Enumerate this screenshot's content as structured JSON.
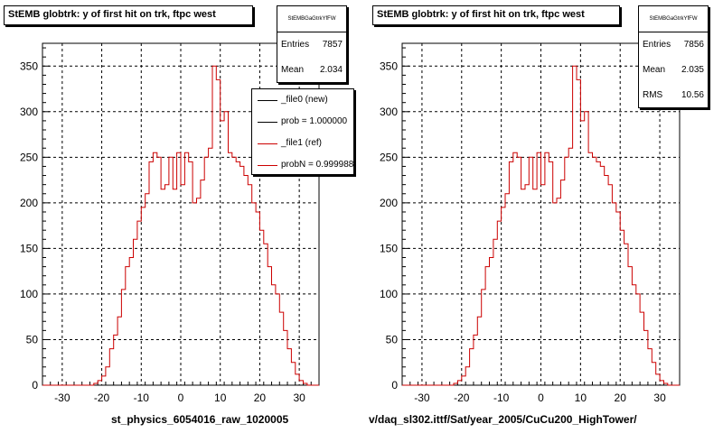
{
  "chart_data": [
    {
      "type": "histogram",
      "title": "StEMB globtrk: y of first hit on trk, ftpc west",
      "xlabel": "st_physics_6054016_raw_1020005",
      "xlim": [
        -35,
        35
      ],
      "ylim": [
        0,
        375
      ],
      "xticks": [
        -30,
        -20,
        -10,
        0,
        10,
        20,
        30
      ],
      "yticks": [
        0,
        50,
        100,
        150,
        200,
        250,
        300,
        350
      ],
      "grid": true,
      "stats": {
        "header": "StEMBGaGtrkYfFW",
        "entries_label": "Entries",
        "entries": "7857",
        "mean_label": "Mean",
        "mean": "2.034"
      },
      "legend": {
        "placement": "top-right",
        "entries": [
          {
            "label": "_file0 (new)",
            "color": "#000000"
          },
          {
            "label": "prob = 1.000000",
            "color": "#000000"
          },
          {
            "label": "_file1 (ref)",
            "color": "#cc0000"
          },
          {
            "label": "probN = 0.999988",
            "color": "#cc0000"
          }
        ]
      },
      "bin_edges_start": -35,
      "bin_width": 1,
      "series": [
        {
          "color": "#cc0000",
          "values": [
            0,
            0,
            0,
            0,
            0,
            0,
            0,
            0,
            0,
            0,
            0,
            0,
            0,
            2,
            5,
            10,
            20,
            40,
            55,
            75,
            105,
            130,
            140,
            160,
            180,
            195,
            210,
            245,
            255,
            250,
            215,
            220,
            250,
            215,
            255,
            220,
            255,
            245,
            200,
            205,
            225,
            250,
            260,
            350,
            335,
            290,
            300,
            255,
            250,
            245,
            240,
            230,
            220,
            200,
            190,
            170,
            155,
            130,
            110,
            100,
            80,
            60,
            40,
            25,
            12,
            5,
            2,
            0,
            0,
            0
          ]
        }
      ]
    },
    {
      "type": "histogram",
      "title": "StEMB globtrk: y of first hit on trk, ftpc west",
      "xlabel": "v/daq_sl302.ittf/Sat/year_2005/CuCu200_HighTower/",
      "xlim": [
        -35,
        35
      ],
      "ylim": [
        0,
        375
      ],
      "xticks": [
        -30,
        -20,
        -10,
        0,
        10,
        20,
        30
      ],
      "yticks": [
        0,
        50,
        100,
        150,
        200,
        250,
        300,
        350
      ],
      "grid": true,
      "stats": {
        "header": "StEMBGaGtrkYfFW",
        "entries_label": "Entries",
        "entries": "7856",
        "mean_label": "Mean",
        "mean": "2.035",
        "rms_label": "RMS",
        "rms": "10.56"
      },
      "bin_edges_start": -35,
      "bin_width": 1,
      "series": [
        {
          "color": "#cc0000",
          "values": [
            0,
            0,
            0,
            0,
            0,
            0,
            0,
            0,
            0,
            0,
            0,
            0,
            0,
            2,
            5,
            10,
            20,
            40,
            55,
            75,
            105,
            130,
            140,
            160,
            180,
            195,
            210,
            245,
            255,
            250,
            215,
            220,
            250,
            215,
            255,
            220,
            255,
            245,
            200,
            205,
            225,
            250,
            260,
            350,
            335,
            290,
            300,
            255,
            250,
            245,
            240,
            230,
            220,
            200,
            190,
            170,
            155,
            130,
            110,
            100,
            80,
            60,
            40,
            25,
            12,
            5,
            2,
            0,
            0,
            0
          ]
        }
      ]
    }
  ]
}
